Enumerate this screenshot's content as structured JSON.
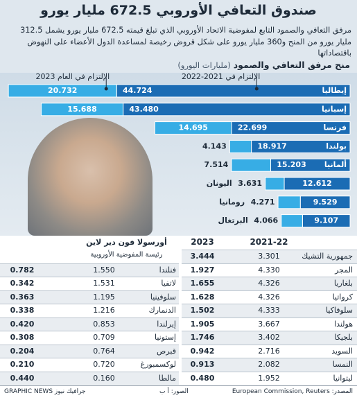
{
  "title": "صندوق التعافي الأوروبي 672.5 مليار يورو",
  "subtitle": "مرفق التعافي والصمود التابع لمفوضية الاتحاد الأوروبي الذي تبلغ قيمته 672.5 مليار يورو يشمل 312.5 مليار يورو من المنح و360 مليار يورو على شكل قروض رخيصة لمساعدة الدول الأعضاء على النهوض باقتصاداتها",
  "chart_data": {
    "type": "bar",
    "orientation": "horizontal",
    "stacked": true,
    "title": "منح مرفق التعافي والصمود",
    "subtitle": "(مليارات اليورو)",
    "categories": [
      "إيطاليا",
      "إسبانيا",
      "فرنسا",
      "بولندا",
      "ألمانيا",
      "اليونان",
      "رومانيا",
      "البرتغال"
    ],
    "series": [
      {
        "name": "الإلتزام في 2021-2022",
        "color": "#1b6cb4",
        "values": [
          44.724,
          43.48,
          22.699,
          18.917,
          15.203,
          12.612,
          9.529,
          9.107
        ],
        "value_labels": [
          "44.724",
          "43.480",
          "22.699",
          "18.917",
          "15.203",
          "12.612",
          "9.529",
          "9.107"
        ]
      },
      {
        "name": "الإلتزام في العام 2023",
        "color": "#37ade5",
        "values": [
          20.732,
          15.688,
          14.695,
          4.143,
          7.514,
          3.631,
          4.271,
          4.066
        ],
        "value_labels": [
          "20.732",
          "15.688",
          "14.695",
          "4.143",
          "7.514",
          "3.631",
          "4.271",
          "4.066"
        ]
      }
    ]
  },
  "table_right": {
    "headers": [
      "2021-22",
      "2023"
    ],
    "rows": [
      [
        "جمهورية التشيك",
        "3.301",
        "3.444"
      ],
      [
        "المجر",
        "4.330",
        "1.927"
      ],
      [
        "بلغاريا",
        "4.326",
        "1.655"
      ],
      [
        "كرواتيا",
        "4.326",
        "1.628"
      ],
      [
        "سلوفاكيا",
        "4.333",
        "1.502"
      ],
      [
        "هولندا",
        "3.667",
        "1.905"
      ],
      [
        "بلجيكا",
        "3.402",
        "1.746"
      ],
      [
        "السويد",
        "2.716",
        "0.942"
      ],
      [
        "النمسا",
        "2.082",
        "0.913"
      ],
      [
        "ليتوانيا",
        "1.952",
        "0.480"
      ]
    ]
  },
  "table_left": {
    "caption": [
      "أورسولا فون دير لاين",
      "رئيسة المفوضية الأوروبية"
    ],
    "rows": [
      [
        "فنلندا",
        "1.550",
        "0.782"
      ],
      [
        "لاتفيا",
        "1.531",
        "0.342"
      ],
      [
        "سلوفينيا",
        "1.195",
        "0.363"
      ],
      [
        "الدنمارك",
        "1.216",
        "0.338"
      ],
      [
        "إيرلندا",
        "0.853",
        "0.420"
      ],
      [
        "إستونيا",
        "0.709",
        "0.308"
      ],
      [
        "قبرص",
        "0.764",
        "0.204"
      ],
      [
        "لوكسمبورغ",
        "0.720",
        "0.210"
      ],
      [
        "مالطا",
        "0.160",
        "0.440"
      ]
    ]
  },
  "footer": {
    "source": "المصدر: European Commission, Reuters",
    "photo": "الصور: أ ب",
    "brand": "GRAPHIC NEWS جرافيك نيوز"
  }
}
